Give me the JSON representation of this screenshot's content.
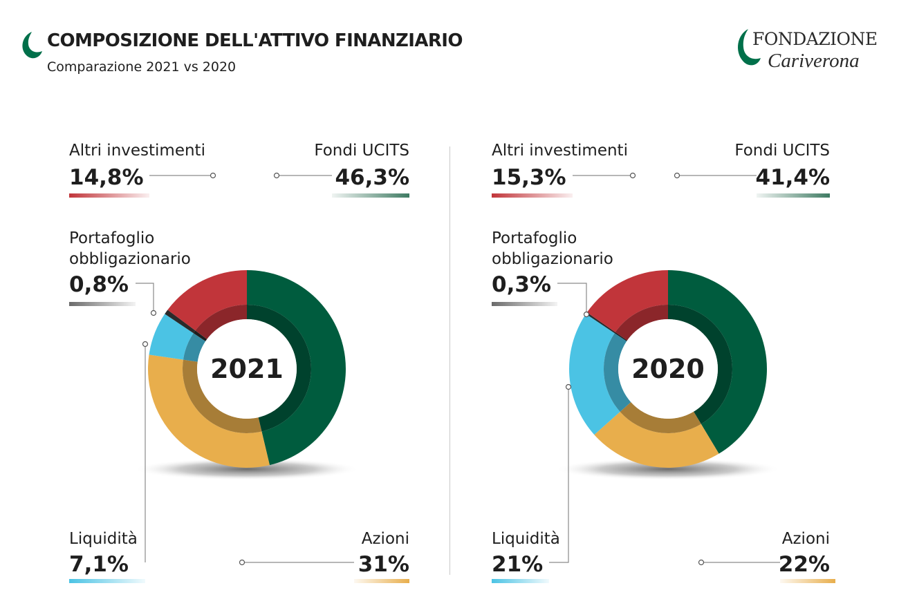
{
  "header": {
    "title": "COMPOSIZIONE DELL'ATTIVO FINANZIARIO",
    "subtitle": "Comparazione 2021 vs 2020"
  },
  "logo": {
    "line1": "FONDAZIONE",
    "line2": "Cariverona",
    "icon": "leaf-icon",
    "color": "#00704a"
  },
  "chart_data": [
    {
      "type": "pie",
      "center_label": "2021",
      "categories": [
        "Fondi UCITS",
        "Azioni",
        "Liquidità",
        "Portafoglio obbligazionario",
        "Altri investimenti"
      ],
      "values": [
        46.3,
        31,
        7.1,
        0.8,
        14.8
      ],
      "value_labels": [
        "46,3%",
        "31%",
        "7,1%",
        "0,8%",
        "14,8%"
      ],
      "colors": [
        "#005c3e",
        "#e8ae4c",
        "#4bc3e4",
        "#2a2a2a",
        "#c1353a"
      ]
    },
    {
      "type": "pie",
      "center_label": "2020",
      "categories": [
        "Fondi UCITS",
        "Azioni",
        "Liquidità",
        "Portafoglio obbligazionario",
        "Altri investimenti"
      ],
      "values": [
        41.4,
        22,
        21,
        0.3,
        15.3
      ],
      "value_labels": [
        "41,4%",
        "22%",
        "21%",
        "0,3%",
        "15,3%"
      ],
      "colors": [
        "#005c3e",
        "#e8ae4c",
        "#4bc3e4",
        "#2a2a2a",
        "#c1353a"
      ]
    }
  ]
}
